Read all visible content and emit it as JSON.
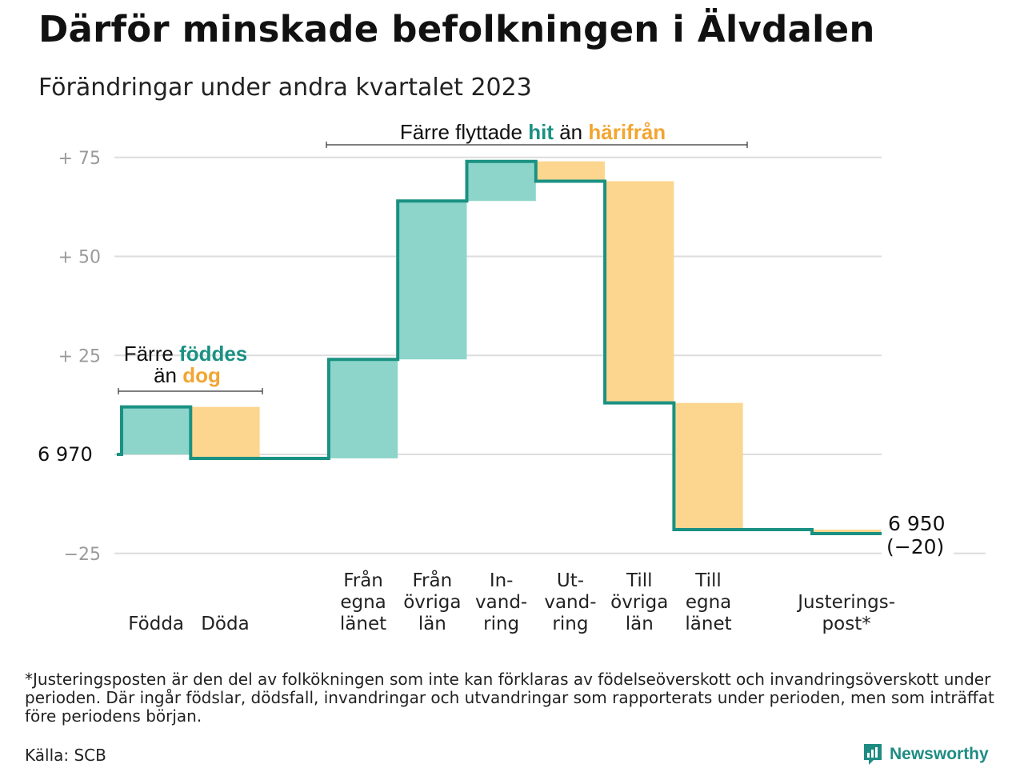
{
  "title": "Därför minskade befolkningen i Älvdalen",
  "subtitle": "Förändringar under andra kvartalet 2023",
  "annotations": {
    "moves": {
      "prefix": "Färre flyttade",
      "hit": "hit",
      "mid": "än",
      "from": "härifrån"
    },
    "births": {
      "prefix": "Färre",
      "born": "föddes",
      "mid": "än",
      "died": "dog"
    }
  },
  "start": {
    "label": "6  970"
  },
  "end": {
    "value_label": "6 950",
    "change_label": "(−20)"
  },
  "footnote": "*Justeringsposten är den del av folkökningen som inte kan förklaras av födelseöverskott och invandringsöverskott under perioden. Där ingår födslar, dödsfall, invandringar och utvandringar som rapporterats under perioden, men som inträffat före periodens början.",
  "source": "Källa: SCB",
  "brand": {
    "name": "Newsworthy",
    "icon": "bar-chart-icon"
  },
  "colors": {
    "increase": "#8dd5cb",
    "decrease": "#fcd68f",
    "line": "#1a9182",
    "hit": "#1a9182",
    "harifran": "#f2a531",
    "grid": "#dddddd"
  },
  "chart_data": {
    "type": "waterfall",
    "baseline": 6970,
    "ylim": [
      -27,
      78
    ],
    "ytick_values": [
      75,
      50,
      25,
      -25
    ],
    "ytick_labels": [
      "+  75",
      "+  50",
      "+  25",
      "−25"
    ],
    "steps": [
      {
        "label": [
          "Födda"
        ],
        "value": 12,
        "kind": "increase"
      },
      {
        "label": [
          "Döda"
        ],
        "value": -13,
        "kind": "decrease"
      },
      {
        "label": [],
        "value": 0,
        "kind": "increase"
      },
      {
        "label": [
          "Från",
          "egna",
          "länet"
        ],
        "value": 25,
        "kind": "increase"
      },
      {
        "label": [
          "Från",
          "övriga",
          "län"
        ],
        "value": 40,
        "kind": "increase"
      },
      {
        "label": [
          "In-",
          "vand-",
          "ring"
        ],
        "value": 10,
        "kind": "increase"
      },
      {
        "label": [
          "Ut-",
          "vand-",
          "ring"
        ],
        "value": -5,
        "kind": "decrease"
      },
      {
        "label": [
          "Till",
          "övriga",
          "län"
        ],
        "value": -56,
        "kind": "decrease"
      },
      {
        "label": [
          "Till",
          "egna",
          "länet"
        ],
        "value": -32,
        "kind": "decrease"
      },
      {
        "label": [],
        "value": 0,
        "kind": "decrease"
      },
      {
        "label": [
          "Justerings-",
          "post*"
        ],
        "value": -1,
        "kind": "decrease"
      }
    ],
    "end_total": -20,
    "grid": true
  }
}
